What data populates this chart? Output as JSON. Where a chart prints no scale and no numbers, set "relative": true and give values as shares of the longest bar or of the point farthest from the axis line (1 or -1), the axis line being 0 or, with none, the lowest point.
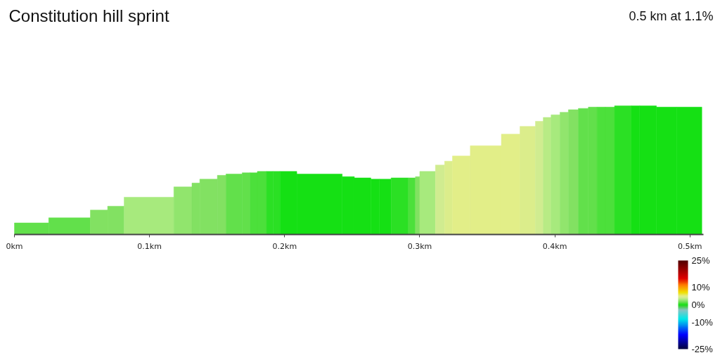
{
  "chart_data": {
    "type": "bar",
    "title": "Constitution hill sprint",
    "subtitle": "0.5 km at 1.1%",
    "relative": true,
    "x": [
      0.0127,
      0.0408,
      0.0626,
      0.0751,
      0.0996,
      0.1247,
      0.1343,
      0.1437,
      0.1534,
      0.1626,
      0.1715,
      0.1771,
      0.1832,
      0.189,
      0.194,
      0.2028,
      0.2258,
      0.2471,
      0.2577,
      0.267,
      0.2745,
      0.2852,
      0.2942,
      0.2984,
      0.3058,
      0.315,
      0.3213,
      0.3308,
      0.3489,
      0.3673,
      0.3799,
      0.3885,
      0.3943,
      0.4005,
      0.4069,
      0.4137,
      0.4211,
      0.428,
      0.4343,
      0.4408,
      0.4504,
      0.4597,
      0.469,
      0.4827,
      0.4995
    ],
    "values": [
      0.09,
      0.13,
      0.19,
      0.22,
      0.29,
      0.37,
      0.4,
      0.43,
      0.46,
      0.47,
      0.48,
      0.48,
      0.49,
      0.49,
      0.49,
      0.49,
      0.47,
      0.45,
      0.44,
      0.43,
      0.43,
      0.44,
      0.44,
      0.45,
      0.49,
      0.54,
      0.57,
      0.61,
      0.69,
      0.78,
      0.84,
      0.88,
      0.91,
      0.93,
      0.95,
      0.97,
      0.98,
      0.99,
      0.99,
      0.99,
      1.0,
      1.0,
      1.0,
      0.99,
      0.99
    ],
    "cvalues": [
      1.5,
      1.5,
      2,
      2,
      3,
      2.5,
      2,
      2,
      2,
      1.5,
      1.5,
      1,
      1,
      0.5,
      0.5,
      0,
      0,
      0,
      0,
      0,
      0,
      0.5,
      1,
      2,
      3,
      4,
      4.5,
      5,
      5,
      5,
      4.5,
      4,
      3.5,
      3,
      2.5,
      2,
      1.5,
      1.5,
      1,
      1,
      0.5,
      0,
      0,
      0,
      0
    ],
    "xlim": [
      0,
      0.51
    ],
    "xticks": [
      {
        "value": 0,
        "label": "0km"
      },
      {
        "value": 0.1,
        "label": "0.1km"
      },
      {
        "value": 0.2,
        "label": "0.2km"
      },
      {
        "value": 0.3,
        "label": "0.3km"
      },
      {
        "value": 0.4,
        "label": "0.4km"
      },
      {
        "value": 0.5,
        "label": "0.5km"
      }
    ],
    "clim": [
      -25,
      25
    ],
    "cticks": [
      {
        "value": 25,
        "label": "25%"
      },
      {
        "value": 10,
        "label": "10%"
      },
      {
        "value": 0,
        "label": "0%"
      },
      {
        "value": -10,
        "label": "-10%"
      },
      {
        "value": -25,
        "label": "-25%"
      }
    ]
  }
}
